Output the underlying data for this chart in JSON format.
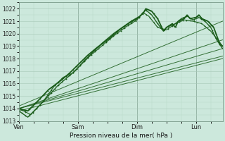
{
  "xlabel": "Pression niveau de la mer( hPa )",
  "background_color": "#cce8dc",
  "grid_major_color": "#a8c8b8",
  "grid_minor_color": "#b8d8c8",
  "line_color": "#1a5c1a",
  "ylim": [
    1013,
    1022.5
  ],
  "yticks": [
    1013,
    1014,
    1015,
    1016,
    1017,
    1018,
    1019,
    1020,
    1021,
    1022
  ],
  "xtick_labels": [
    "Ven",
    "Sam",
    "Dim",
    "Lun"
  ],
  "xtick_positions": [
    0,
    1,
    2,
    3
  ],
  "xlim": [
    0,
    3.45
  ],
  "figsize": [
    3.2,
    2.0
  ],
  "dpi": 100
}
